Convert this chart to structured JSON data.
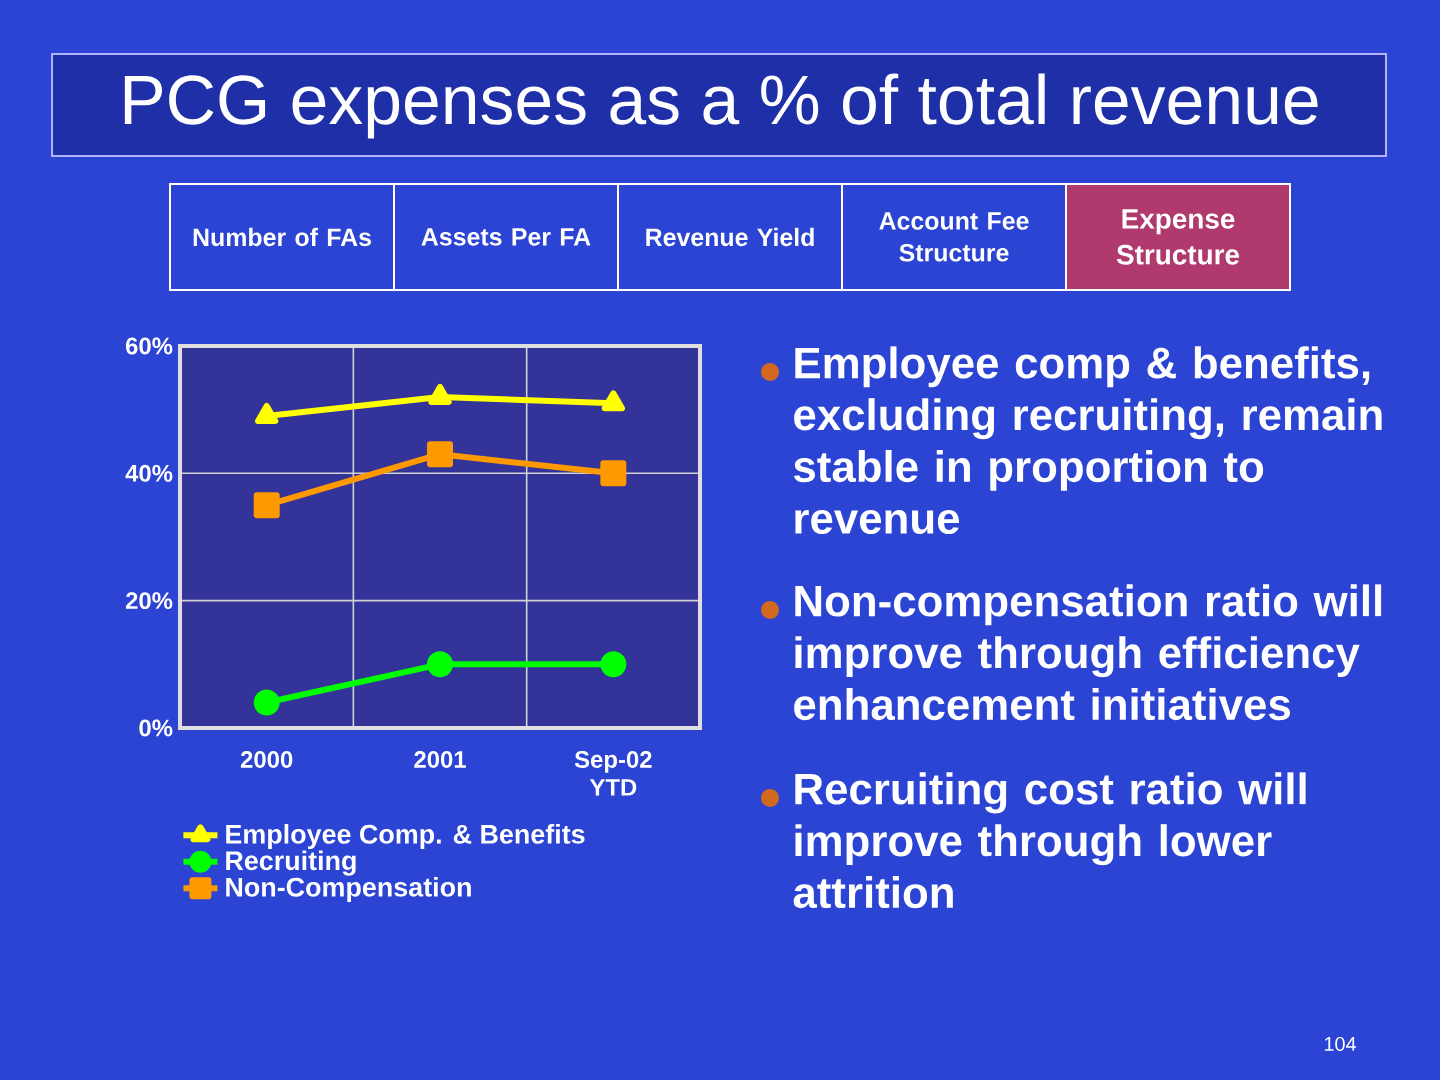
{
  "chart_data": {
    "type": "line",
    "title": "PCG expenses as a % of total revenue",
    "categories": [
      "2000",
      "2001",
      "Sep-02 YTD"
    ],
    "series": [
      {
        "name": "Employee Comp. & Benefits",
        "color": "#ffff00",
        "marker": "triangle",
        "values": [
          49,
          52,
          51
        ]
      },
      {
        "name": "Recruiting",
        "color": "#00ff00",
        "marker": "circle",
        "values": [
          4,
          10,
          10
        ]
      },
      {
        "name": "Non-Compensation",
        "color": "#ff9900",
        "marker": "square",
        "values": [
          35,
          43,
          40
        ]
      }
    ],
    "ylim": [
      0,
      60
    ],
    "yticks": [
      {
        "value": 0,
        "label": "0%"
      },
      {
        "value": 20,
        "label": "20%"
      },
      {
        "value": 40,
        "label": "40%"
      },
      {
        "value": 60,
        "label": "60%"
      }
    ],
    "grid": true,
    "legend": "bottom",
    "annotations": [
      "Number of FAs",
      "Assets Per FA",
      "Revenue Yield",
      "Account Fee Structure",
      "Expense Structure",
      "Employee comp & benefits, excluding recruiting, remain stable in proportion to revenue",
      "Non-compensation ratio will improve through efficiency enhancement initiatives",
      "Recruiting cost ratio will improve through lower attrition",
      "104"
    ]
  }
}
